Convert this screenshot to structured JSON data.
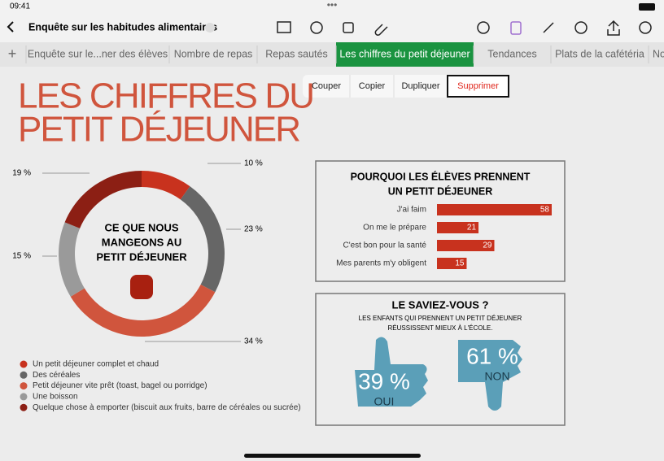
{
  "status": {
    "time": "09:41"
  },
  "toolbar": {
    "title": "Enquête sur les habitudes alimentaires"
  },
  "tabs": [
    "Enquête sur le...ner des élèves",
    "Nombre de repas",
    "Repas sautés",
    "Les chiffres du petit déjeuner",
    "Tendances",
    "Plats de la cafétéria",
    "No"
  ],
  "active_tab": 3,
  "context_menu": [
    "Couper",
    "Copier",
    "Dupliquer",
    "Supprimer"
  ],
  "sheet": {
    "heading": [
      "LES CHIFFRES DU",
      "PETIT DÉJEUNER"
    ]
  },
  "donut": {
    "type": "pie",
    "center_label": [
      "CE QUE NOUS",
      "MANGEONS AU",
      "PETIT DÉJEUNER"
    ],
    "categories": [
      "Un petit déjeuner complet et chaud",
      "Des céréales",
      "Petit déjeuner vite prêt (toast, bagel ou porridge)",
      "Une boisson",
      "Quelque chose à emporter (biscuit aux fruits, barre de céréales ou sucrée)"
    ],
    "values": [
      10,
      23,
      34,
      15,
      19
    ],
    "value_labels": [
      "10 %",
      "23 %",
      "34 %",
      "15 %",
      "19 %"
    ],
    "colors": [
      "#c8321e",
      "#666666",
      "#d0553d",
      "#9a9a9a",
      "#8c1f14"
    ]
  },
  "bar": {
    "type": "bar",
    "title": [
      "POURQUOI LES ÉLÈVES PRENNENT",
      "UN PETIT DÉJEUNER"
    ],
    "categories": [
      "J'ai faim",
      "On me le prépare",
      "C'est bon pour la santé",
      "Mes parents m'y obligent"
    ],
    "values": [
      58,
      21,
      29,
      15
    ],
    "color": "#c8321e"
  },
  "fact": {
    "title": "LE SAVIEZ-VOUS ?",
    "text": [
      "LES ENFANTS QUI PRENNENT UN PETIT DÉJEUNER",
      "RÉUSSISSENT MIEUX À L'ÉCOLE."
    ],
    "yes_value": "39 %",
    "yes_label": "OUI",
    "no_value": "61 %",
    "no_label": "NON"
  }
}
